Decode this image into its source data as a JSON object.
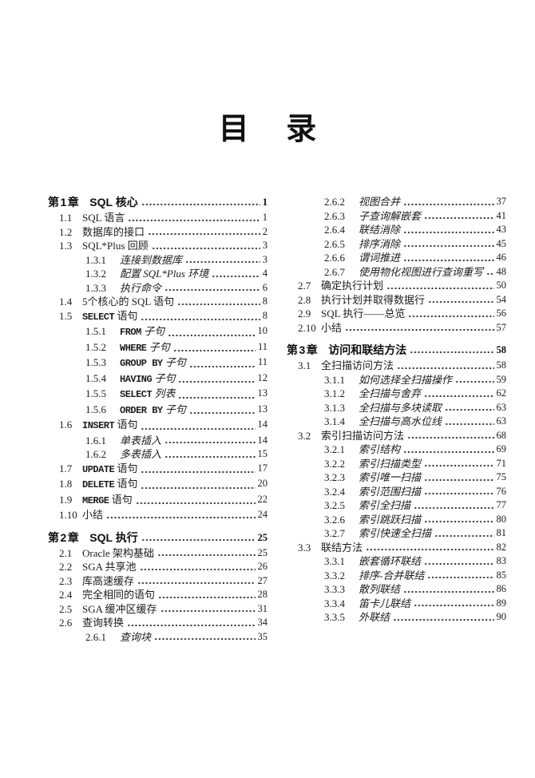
{
  "page": {
    "title": "目 录"
  },
  "toc": {
    "left_column": [
      {
        "type": "chapter",
        "num": "第1章",
        "text": "SQL 核心",
        "page": "1"
      },
      {
        "type": "level1",
        "num": "1.1",
        "text": "SQL 语言",
        "page": "1"
      },
      {
        "type": "level1",
        "num": "1.2",
        "text": "数据库的接口",
        "page": "2"
      },
      {
        "type": "level1",
        "num": "1.3",
        "text": "SQL*Plus 回顾",
        "page": "3"
      },
      {
        "type": "level2",
        "num": "1.3.1",
        "text": "连接到数据库",
        "page": "3"
      },
      {
        "type": "level2",
        "num": "1.3.2",
        "text": "配置 SQL*Plus 环境",
        "page": "4"
      },
      {
        "type": "level2",
        "num": "1.3.3",
        "text": "执行命令",
        "page": "6"
      },
      {
        "type": "level1",
        "num": "1.4",
        "text": "5个核心的 SQL 语句",
        "page": "8"
      },
      {
        "type": "level1",
        "num": "1.5",
        "text": "SELECT 语句",
        "page": "8"
      },
      {
        "type": "level2",
        "num": "1.5.1",
        "text": "FROM 子句",
        "page": "10"
      },
      {
        "type": "level2",
        "num": "1.5.2",
        "text": "WHERE 子句",
        "page": "11"
      },
      {
        "type": "level2",
        "num": "1.5.3",
        "text": "GROUP BY 子句",
        "page": "11"
      },
      {
        "type": "level2",
        "num": "1.5.4",
        "text": "HAVING 子句",
        "page": "12"
      },
      {
        "type": "level2",
        "num": "1.5.5",
        "text": "SELECT 列表",
        "page": "13"
      },
      {
        "type": "level2",
        "num": "1.5.6",
        "text": "ORDER BY 子句",
        "page": "13"
      },
      {
        "type": "level1",
        "num": "1.6",
        "text": "INSERT 语句",
        "page": "14"
      },
      {
        "type": "level2",
        "num": "1.6.1",
        "text": "单表插入",
        "page": "14"
      },
      {
        "type": "level2",
        "num": "1.6.2",
        "text": "多表插入",
        "page": "15"
      },
      {
        "type": "level1",
        "num": "1.7",
        "text": "UPDATE 语句",
        "page": "17"
      },
      {
        "type": "level1",
        "num": "1.8",
        "text": "DELETE 语句",
        "page": "20"
      },
      {
        "type": "level1",
        "num": "1.9",
        "text": "MERGE 语句",
        "page": "22"
      },
      {
        "type": "level1",
        "num": "1.10",
        "text": "小结",
        "page": "24"
      },
      {
        "type": "chapter",
        "num": "第2章",
        "text": "SQL 执行",
        "page": "25"
      },
      {
        "type": "level1",
        "num": "2.1",
        "text": "Oracle 架构基础",
        "page": "25"
      },
      {
        "type": "level1",
        "num": "2.2",
        "text": "SGA 共享池",
        "page": "26"
      },
      {
        "type": "level1",
        "num": "2.3",
        "text": "库高速缓存",
        "page": "27"
      },
      {
        "type": "level1",
        "num": "2.4",
        "text": "完全相同的语句",
        "page": "28"
      },
      {
        "type": "level1",
        "num": "2.5",
        "text": "SGA 缓冲区缓存",
        "page": "31"
      },
      {
        "type": "level1",
        "num": "2.6",
        "text": "查询转换",
        "page": "34"
      },
      {
        "type": "level2",
        "num": "2.6.1",
        "text": "查询块",
        "page": "35"
      }
    ],
    "right_column": [
      {
        "type": "level2",
        "num": "2.6.2",
        "text": "视图合并",
        "page": "37"
      },
      {
        "type": "level2",
        "num": "2.6.3",
        "text": "子查询解嵌套",
        "page": "41"
      },
      {
        "type": "level2",
        "num": "2.6.4",
        "text": "联结消除",
        "page": "43"
      },
      {
        "type": "level2",
        "num": "2.6.5",
        "text": "排序消除",
        "page": "45"
      },
      {
        "type": "level2",
        "num": "2.6.6",
        "text": "谓词推进",
        "page": "46"
      },
      {
        "type": "level2",
        "num": "2.6.7",
        "text": "使用物化视图进行查询重写",
        "page": "48"
      },
      {
        "type": "level1",
        "num": "2.7",
        "text": "确定执行计划",
        "page": "50"
      },
      {
        "type": "level1",
        "num": "2.8",
        "text": "执行计划并取得数据行",
        "page": "54"
      },
      {
        "type": "level1",
        "num": "2.9",
        "text": "SQL 执行——总览",
        "page": "56"
      },
      {
        "type": "level1",
        "num": "2.10",
        "text": "小结",
        "page": "57"
      },
      {
        "type": "chapter",
        "num": "第3章",
        "text": "访问和联结方法",
        "page": "58"
      },
      {
        "type": "level1",
        "num": "3.1",
        "text": "全扫描访问方法",
        "page": "58"
      },
      {
        "type": "level2",
        "num": "3.1.1",
        "text": "如何选择全扫描操作",
        "page": "59"
      },
      {
        "type": "level2",
        "num": "3.1.2",
        "text": "全扫描与舍弃",
        "page": "62"
      },
      {
        "type": "level2",
        "num": "3.1.3",
        "text": "全扫描与多块读取",
        "page": "63"
      },
      {
        "type": "level2",
        "num": "3.1.4",
        "text": "全扫描与高水位线",
        "page": "63"
      },
      {
        "type": "level1",
        "num": "3.2",
        "text": "索引扫描访问方法",
        "page": "68"
      },
      {
        "type": "level2",
        "num": "3.2.1",
        "text": "索引结构",
        "page": "69"
      },
      {
        "type": "level2",
        "num": "3.2.2",
        "text": "索引扫描类型",
        "page": "71"
      },
      {
        "type": "level2",
        "num": "3.2.3",
        "text": "索引唯一扫描",
        "page": "75"
      },
      {
        "type": "level2",
        "num": "3.2.4",
        "text": "索引范围扫描",
        "page": "76"
      },
      {
        "type": "level2",
        "num": "3.2.5",
        "text": "索引全扫描",
        "page": "77"
      },
      {
        "type": "level2",
        "num": "3.2.6",
        "text": "索引跳跃扫描",
        "page": "80"
      },
      {
        "type": "level2",
        "num": "3.2.7",
        "text": "索引快速全扫描",
        "page": "81"
      },
      {
        "type": "level1",
        "num": "3.3",
        "text": "联结方法",
        "page": "82"
      },
      {
        "type": "level2",
        "num": "3.3.1",
        "text": "嵌套循环联结",
        "page": "83"
      },
      {
        "type": "level2",
        "num": "3.3.2",
        "text": "排序-合并联结",
        "page": "85"
      },
      {
        "type": "level2",
        "num": "3.3.3",
        "text": "散列联结",
        "page": "86"
      },
      {
        "type": "level2",
        "num": "3.3.4",
        "text": "笛卡儿联结",
        "page": "89"
      },
      {
        "type": "level2",
        "num": "3.3.5",
        "text": "外联结",
        "page": "90"
      }
    ]
  }
}
